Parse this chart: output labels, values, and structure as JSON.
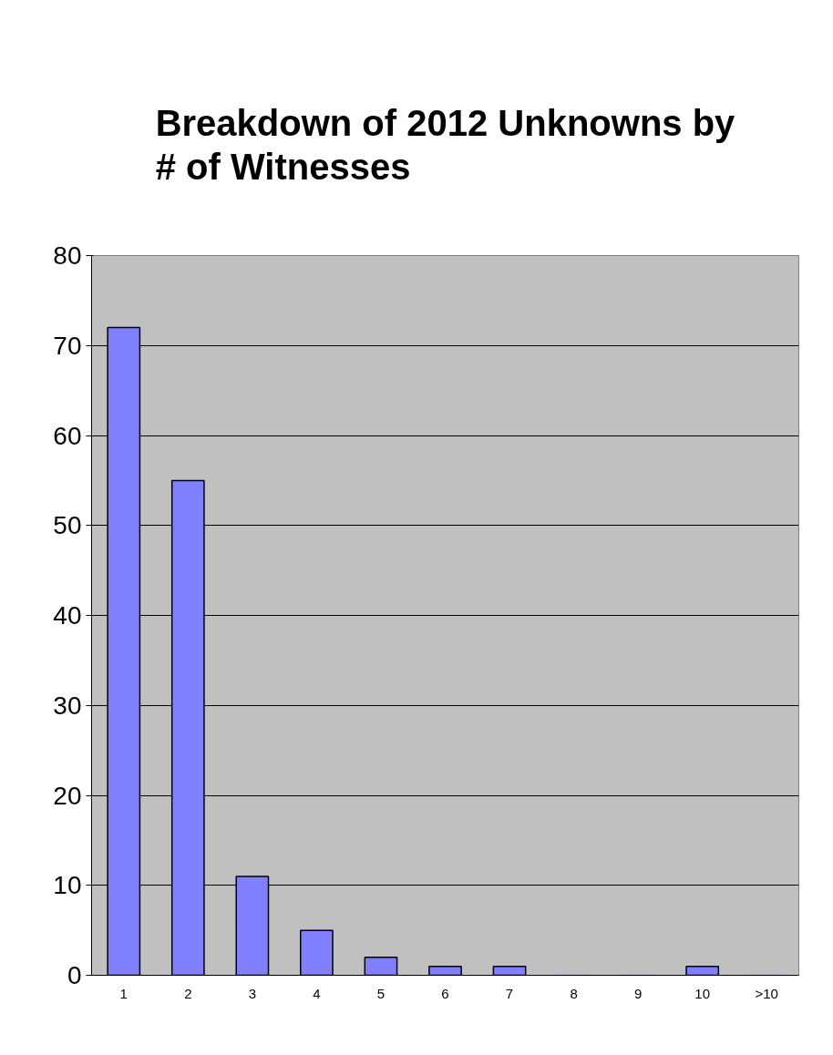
{
  "chart_data": {
    "type": "bar",
    "title": "Breakdown of 2012 Unknowns by # of Witnesses",
    "categories": [
      "1",
      "2",
      "3",
      "4",
      "5",
      "6",
      "7",
      "8",
      "9",
      "10",
      ">10"
    ],
    "values": [
      72,
      55,
      11,
      5,
      2,
      1,
      1,
      0,
      0,
      1,
      0
    ],
    "color": "#8080ff",
    "ylim": [
      0,
      80
    ],
    "yticks": [
      0,
      10,
      20,
      30,
      40,
      50,
      60,
      70,
      80
    ],
    "grid": "y"
  }
}
